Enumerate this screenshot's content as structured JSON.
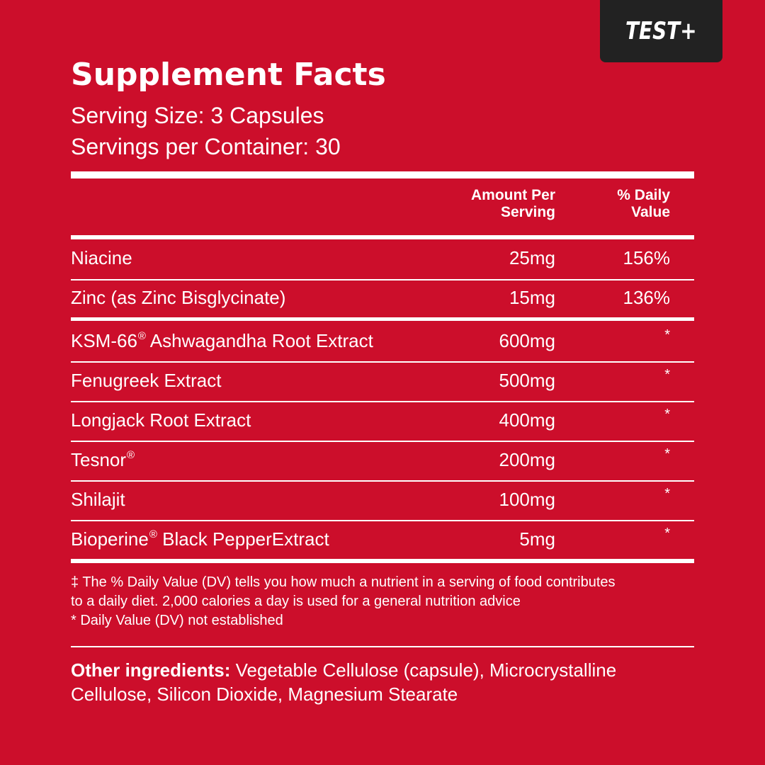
{
  "badge": {
    "text": "TEST+"
  },
  "title": "Supplement Facts",
  "serving_size": "Serving Size: 3 Capsules",
  "servings_per_container": "Servings per Container: 30",
  "table": {
    "headers": {
      "amount_line1": "Amount Per",
      "amount_line2": "Serving",
      "dv_line1": "% Daily",
      "dv_line2": "Value"
    },
    "rows": [
      {
        "name": "Niacine",
        "reg": "",
        "suffix": "",
        "amount": "25mg",
        "dv": "156%"
      },
      {
        "name": "Zinc (as Zinc Bisglycinate)",
        "reg": "",
        "suffix": "",
        "amount": "15mg",
        "dv": "136%"
      },
      {
        "name": "KSM-66",
        "reg": "®",
        "suffix": " Ashwagandha Root Extract",
        "amount": "600mg",
        "dv": "*"
      },
      {
        "name": "Fenugreek Extract",
        "reg": "",
        "suffix": "",
        "amount": "500mg",
        "dv": "*"
      },
      {
        "name": "Longjack Root Extract",
        "reg": "",
        "suffix": "",
        "amount": "400mg",
        "dv": "*"
      },
      {
        "name": "Tesnor",
        "reg": "®",
        "suffix": "",
        "amount": "200mg",
        "dv": "*"
      },
      {
        "name": "Shilajit",
        "reg": "",
        "suffix": "",
        "amount": "100mg",
        "dv": "*"
      },
      {
        "name": "Bioperine",
        "reg": "®",
        "suffix": " Black PepperExtract",
        "amount": "5mg",
        "dv": "*"
      }
    ]
  },
  "footnotes": {
    "line1": "‡ The % Daily Value (DV) tells you how much a nutrient in a serving of food contributes",
    "line2": "to a daily diet. 2,000 calories a day is used for a general nutrition advice",
    "line3": "* Daily Value (DV) not established"
  },
  "other_ingredients": {
    "label": "Other ingredients:",
    "line1": " Vegetable Cellulose (capsule), Microcrystalline",
    "line2": "Cellulose, Silicon Dioxide, Magnesium Stearate"
  },
  "colors": {
    "background": "#cc0e2b",
    "badge": "#222222",
    "text": "#ffffff"
  }
}
